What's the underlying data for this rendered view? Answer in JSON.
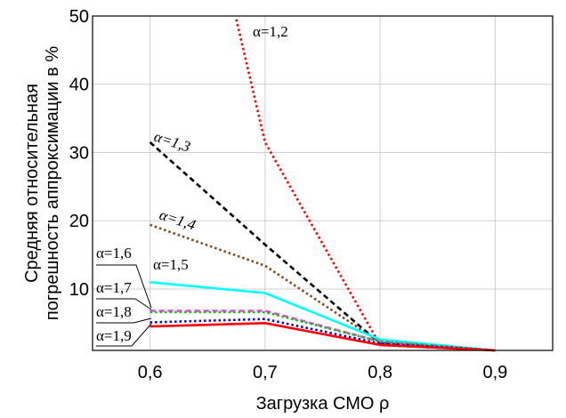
{
  "chart_data": {
    "type": "line",
    "title": "",
    "xlabel": "Загрузка СМО ρ",
    "ylabel_line1": "Средняя относительная",
    "ylabel_line2": "погрешность аппроксимации в %",
    "xlim": [
      0.55,
      0.95
    ],
    "ylim": [
      1,
      50
    ],
    "x_ticks": [
      {
        "value": 0.6,
        "label": "0,6"
      },
      {
        "value": 0.7,
        "label": "0,7"
      },
      {
        "value": 0.8,
        "label": "0,8"
      },
      {
        "value": 0.9,
        "label": "0,9"
      }
    ],
    "y_ticks": [
      {
        "value": 10,
        "label": "10"
      },
      {
        "value": 20,
        "label": "20"
      },
      {
        "value": 30,
        "label": "30"
      },
      {
        "value": 40,
        "label": "40"
      },
      {
        "value": 50,
        "label": "50"
      }
    ],
    "grid": true,
    "series": [
      {
        "name": "α=1,2",
        "color": "#ff0000",
        "style": "dotted",
        "x": [
          0.675,
          0.7,
          0.8,
          0.9
        ],
        "y": [
          49.5,
          31.5,
          1.8,
          1.0
        ]
      },
      {
        "name": "α=1,3",
        "color": "#000000",
        "style": "dashed",
        "x": [
          0.6,
          0.7,
          0.8,
          0.9
        ],
        "y": [
          31.5,
          16.5,
          2.0,
          1.0
        ]
      },
      {
        "name": "α=1,4",
        "color": "#8b4513",
        "style": "dotted",
        "x": [
          0.6,
          0.7,
          0.8,
          0.9
        ],
        "y": [
          19.4,
          13.4,
          2.2,
          1.0
        ]
      },
      {
        "name": "α=1,5",
        "color": "#00ffff",
        "style": "solid",
        "x": [
          0.6,
          0.7,
          0.8,
          0.9
        ],
        "y": [
          11.0,
          9.4,
          2.6,
          1.0
        ]
      },
      {
        "name": "α=1,6",
        "color": "#ff33ff",
        "style": "dashed",
        "x": [
          0.6,
          0.7,
          0.8,
          0.9
        ],
        "y": [
          6.8,
          6.8,
          2.3,
          1.0
        ]
      },
      {
        "name": "α=1,7",
        "color": "#00cc00",
        "style": "dotted",
        "x": [
          0.6,
          0.7,
          0.8,
          0.9
        ],
        "y": [
          6.6,
          6.6,
          2.3,
          1.0
        ]
      },
      {
        "name": "α=1,8",
        "color": "#0000ff",
        "style": "dotted",
        "x": [
          0.6,
          0.7,
          0.8,
          0.9
        ],
        "y": [
          5.1,
          5.6,
          2.0,
          1.0
        ]
      },
      {
        "name": "α=1,9",
        "color": "#ff0000",
        "style": "solid",
        "x": [
          0.6,
          0.7,
          0.8,
          0.9
        ],
        "y": [
          4.5,
          5.0,
          1.8,
          1.0
        ]
      }
    ]
  }
}
